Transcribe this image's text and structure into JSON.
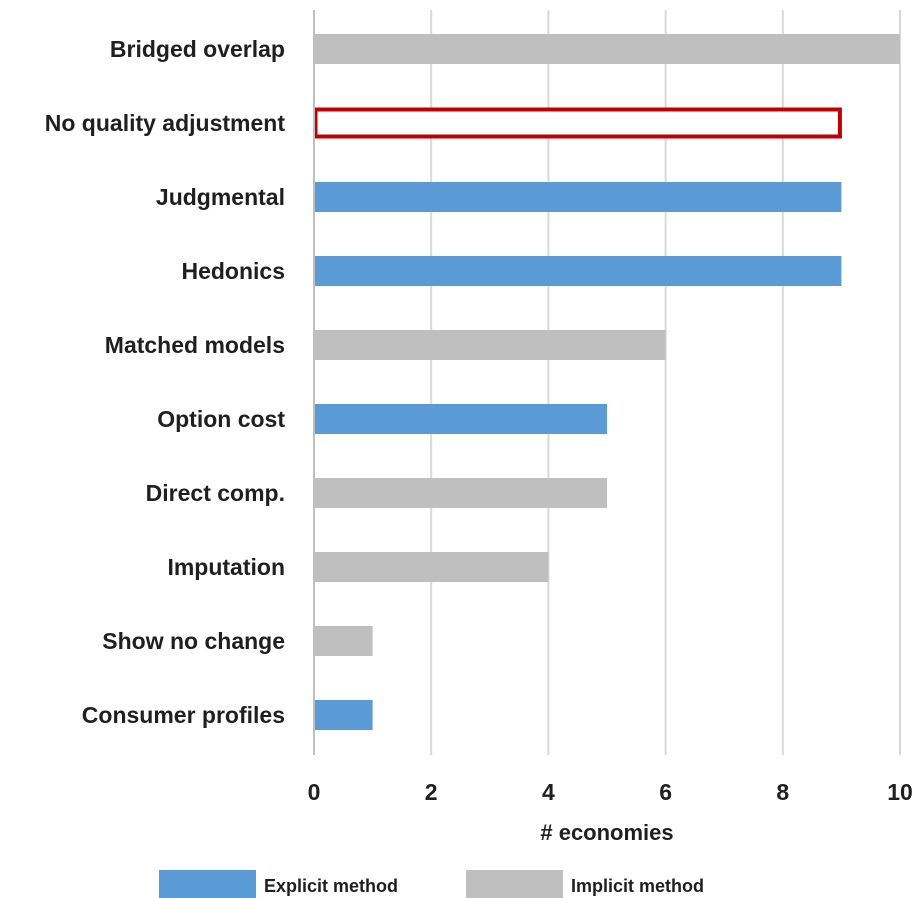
{
  "chart_data": {
    "type": "bar",
    "orientation": "horizontal",
    "categories": [
      "Bridged overlap",
      "No quality adjustment",
      "Judgmental",
      "Hedonics",
      "Matched models",
      "Option cost",
      "Direct comp.",
      "Imputation",
      "Show no change",
      "Consumer profiles"
    ],
    "values": [
      10,
      9,
      9,
      9,
      6,
      5,
      5,
      4,
      1,
      1
    ],
    "bar_groups": [
      "implicit",
      "none",
      "explicit",
      "explicit",
      "implicit",
      "explicit",
      "implicit",
      "implicit",
      "implicit",
      "explicit"
    ],
    "xlabel": "# economies",
    "ylabel": "",
    "xlim": [
      0,
      10
    ],
    "xticks": [
      0,
      2,
      4,
      6,
      8,
      10
    ],
    "grid": "vertical",
    "legend": {
      "placement": "bottom",
      "entries": [
        {
          "key": "explicit",
          "label": "Explicit method"
        },
        {
          "key": "implicit",
          "label": "Implicit method"
        }
      ]
    },
    "colors": {
      "explicit": "#5b9bd5",
      "implicit": "#bfbfbf",
      "none_outline": "#c00000",
      "grid": "#d9d9d9",
      "axis": "#bfbfbf"
    }
  }
}
